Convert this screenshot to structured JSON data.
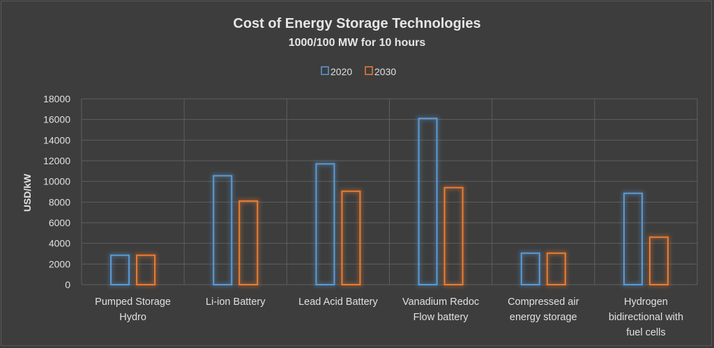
{
  "chart_data": {
    "type": "bar",
    "title": "Cost of Energy Storage Technologies",
    "subtitle": "1000/100 MW for 10 hours",
    "ylabel": "USD/kW",
    "xlabel": "",
    "ylim": [
      0,
      18000
    ],
    "yticks": [
      "0",
      "2000",
      "4000",
      "6000",
      "8000",
      "10000",
      "12000",
      "14000",
      "16000",
      "18000"
    ],
    "grid": true,
    "legend_position": "top",
    "categories": [
      [
        "Pumped Storage",
        "Hydro"
      ],
      [
        "Li-ion Battery"
      ],
      [
        "Lead Acid Battery"
      ],
      [
        "Vanadium Redoc",
        "Flow battery"
      ],
      [
        "Compressed air",
        "energy storage"
      ],
      [
        "Hydrogen",
        "bidirectional with",
        "fuel cells"
      ]
    ],
    "series": [
      {
        "name": "2020",
        "color": "#5b9bd5",
        "values": [
          2850,
          10550,
          11700,
          16100,
          3050,
          8850
        ]
      },
      {
        "name": "2030",
        "color": "#ed7d31",
        "values": [
          2850,
          8100,
          9050,
          9400,
          3050,
          4600
        ]
      }
    ]
  }
}
